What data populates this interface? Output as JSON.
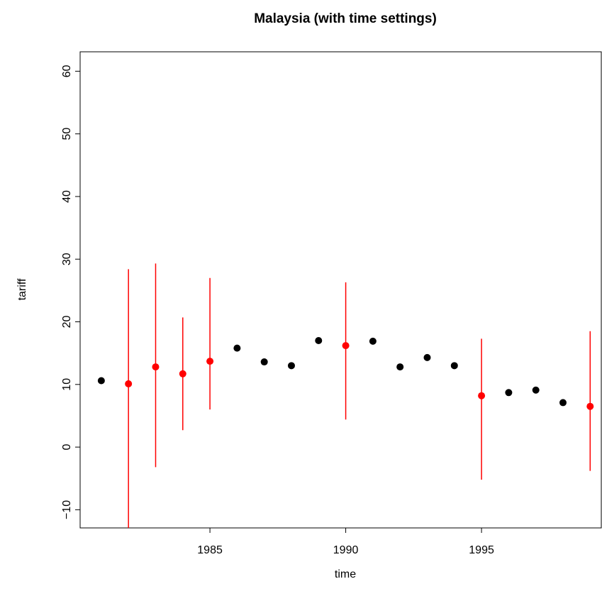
{
  "chart_data": {
    "type": "errorbar-scatter",
    "title": "Malaysia (with time settings)",
    "x_label": "time",
    "y_label": "tariff",
    "x": [
      1981,
      1982,
      1983,
      1984,
      1985,
      1986,
      1987,
      1988,
      1989,
      1990,
      1991,
      1992,
      1993,
      1994,
      1995,
      1996,
      1997,
      1998,
      1999
    ],
    "values": [
      10.6,
      10.1,
      12.8,
      11.7,
      13.7,
      15.8,
      13.6,
      13.0,
      17.0,
      16.2,
      16.9,
      12.8,
      14.3,
      13.0,
      8.2,
      8.7,
      9.1,
      7.1,
      6.5
    ],
    "lower": [
      null,
      -14,
      -3.2,
      2.7,
      6.0,
      null,
      null,
      null,
      null,
      4.4,
      null,
      null,
      null,
      null,
      -5.2,
      null,
      null,
      null,
      -3.8
    ],
    "upper": [
      null,
      28.4,
      29.3,
      20.7,
      27.0,
      null,
      null,
      null,
      null,
      26.3,
      null,
      null,
      null,
      null,
      17.3,
      null,
      null,
      null,
      18.5
    ],
    "color": "#000000",
    "error_color": "#ff0000",
    "xlim": [
      1980.22,
      1999.41
    ],
    "ylim": [
      -12.9,
      63.1
    ],
    "xticks": [
      1985,
      1990,
      1995
    ],
    "yticks": [
      {
        "value": -10,
        "label": "−10"
      },
      0,
      10,
      20,
      30,
      40,
      50,
      60
    ],
    "grid": false
  }
}
